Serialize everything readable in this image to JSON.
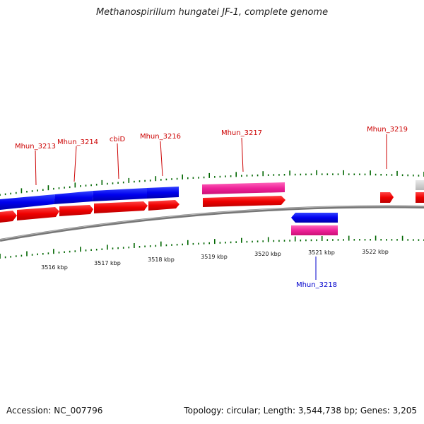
{
  "title": "Methanospirillum hungatei JF-1, complete genome",
  "footer": {
    "accession": "Accession: NC_007796",
    "topology": "Topology: circular; Length: 3,544,738 bp; Genes: 3,205"
  },
  "colors": {
    "cds": "#ff0000",
    "gene_forward": "#0000ff",
    "gene_reverse": "#0000ff",
    "pseudo": "#ff3399",
    "label_forward": "#cc0000",
    "label_reverse": "#0000cc",
    "ticks": "#006600",
    "backbone": "#888888",
    "partial": "#cccccc"
  },
  "axis_labels": [
    "3516 kbp",
    "3517 kbp",
    "3518 kbp",
    "3519 kbp",
    "3520 kbp",
    "3521 kbp",
    "3522 kbp"
  ],
  "gene_labels": {
    "top": [
      "Mhun_3213",
      "Mhun_3214",
      "cbiD",
      "Mhun_3216",
      "Mhun_3217",
      "Mhun_3219"
    ],
    "bottom": [
      "Mhun_3218"
    ]
  }
}
